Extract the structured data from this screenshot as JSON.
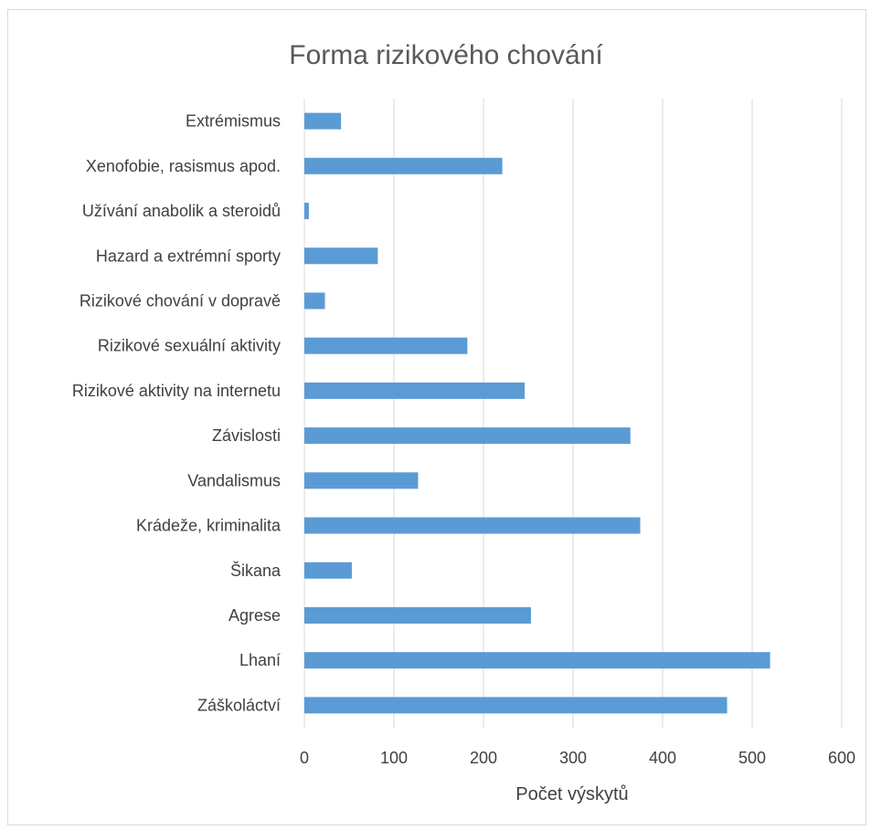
{
  "chart_data": {
    "type": "bar",
    "orientation": "horizontal",
    "title": "Forma rizikového chování",
    "xlabel": "Počet výskytů",
    "ylabel": "",
    "xlim": [
      0,
      600
    ],
    "xticks": [
      "0",
      "100",
      "200",
      "300",
      "400",
      "500",
      "600"
    ],
    "grid": true,
    "legend": "none",
    "bar_color": "#5b9bd5",
    "categories": [
      "Extrémismus",
      "Xenofobie, rasismus apod.",
      "Užívání anabolik a steroidů",
      "Hazard a extrémní sporty",
      "Rizikové chování v dopravě",
      "Rizikové sexuální aktivity",
      "Rizikové aktivity na internetu",
      "Závislosti",
      "Vandalismus",
      "Krádeže, kriminalita",
      "Šikana",
      "Agrese",
      "Lhaní",
      "Záškoláctví"
    ],
    "values": [
      41,
      221,
      5,
      82,
      23,
      182,
      246,
      364,
      127,
      375,
      53,
      253,
      520,
      472
    ]
  }
}
